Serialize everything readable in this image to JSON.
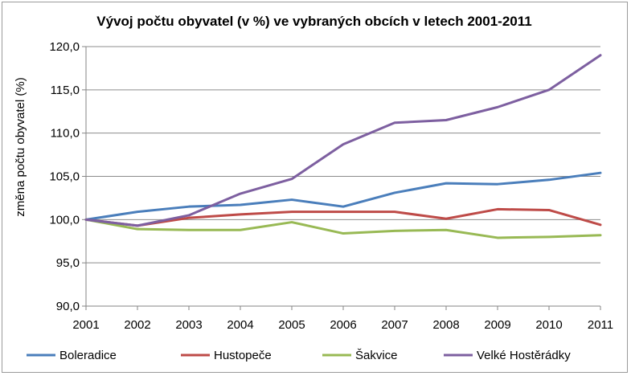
{
  "chart_data": {
    "type": "line",
    "title": "Vývoj počtu obyvatel (v %) ve vybraných obcích v letech 2001-2011",
    "xlabel": "",
    "ylabel": "změna počtu obyvatel (%)",
    "x": [
      "2001",
      "2002",
      "2003",
      "2004",
      "2005",
      "2006",
      "2007",
      "2008",
      "2009",
      "2010",
      "2011"
    ],
    "ylim": [
      90,
      120
    ],
    "yticks": [
      90,
      95,
      100,
      105,
      110,
      115,
      120
    ],
    "ytick_labels": [
      "90,0",
      "95,0",
      "100,0",
      "105,0",
      "110,0",
      "115,0",
      "120,0"
    ],
    "grid": true,
    "legend_position": "bottom",
    "series": [
      {
        "name": "Boleradice",
        "color": "#4a7ebb",
        "values": [
          100.0,
          100.9,
          101.5,
          101.7,
          102.3,
          101.5,
          103.1,
          104.2,
          104.1,
          104.6,
          105.4
        ]
      },
      {
        "name": "Hustopeče",
        "color": "#be4b48",
        "values": [
          100.0,
          99.3,
          100.2,
          100.6,
          100.9,
          100.9,
          100.9,
          100.1,
          101.2,
          101.1,
          99.4
        ]
      },
      {
        "name": "Šakvice",
        "color": "#98b954",
        "values": [
          100.0,
          98.9,
          98.8,
          98.8,
          99.7,
          98.4,
          98.7,
          98.8,
          97.9,
          98.0,
          98.2
        ]
      },
      {
        "name": "Velké Hostěrádky",
        "color": "#7d5fa0",
        "values": [
          100.0,
          99.3,
          100.5,
          103.0,
          104.7,
          108.7,
          111.2,
          111.5,
          113.0,
          115.0,
          119.0
        ]
      }
    ]
  }
}
